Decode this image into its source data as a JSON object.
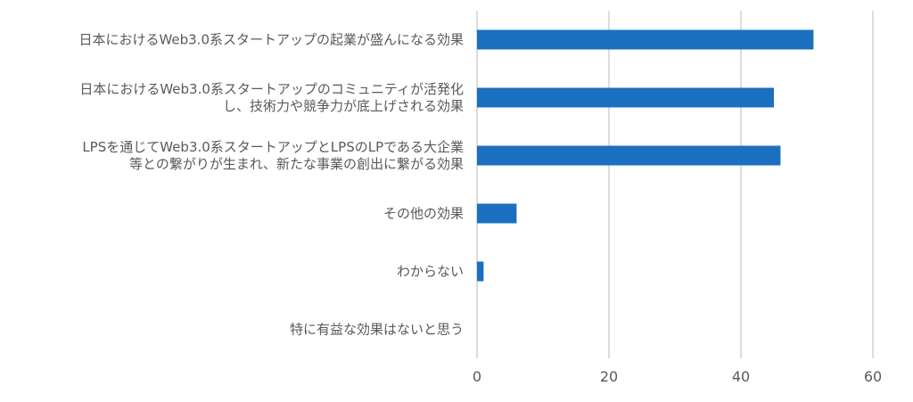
{
  "chart_data": {
    "type": "bar",
    "orientation": "horizontal",
    "categories": [
      [
        "日本におけるWeb3.0系スタートアップの起業が盛んになる効果"
      ],
      [
        "日本におけるWeb3.0系スタートアップのコミュニティが活発化",
        "し、技術力や競争力が底上げされる効果"
      ],
      [
        "LPSを通じてWeb3.0系スタートアップとLPSのLPである大企業",
        "等との繋がりが生まれ、新たな事業の創出に繋がる効果"
      ],
      [
        "その他の効果"
      ],
      [
        "わからない"
      ],
      [
        "特に有益な効果はないと思う"
      ]
    ],
    "values": [
      51,
      45,
      46,
      6,
      1,
      0
    ],
    "xlim": [
      0,
      60
    ],
    "xticks": [
      "0",
      "20",
      "40",
      "60"
    ],
    "grid": true,
    "legend": "none",
    "bar_color": "#1a6fbf",
    "grid_color": "#d0d0d0"
  }
}
